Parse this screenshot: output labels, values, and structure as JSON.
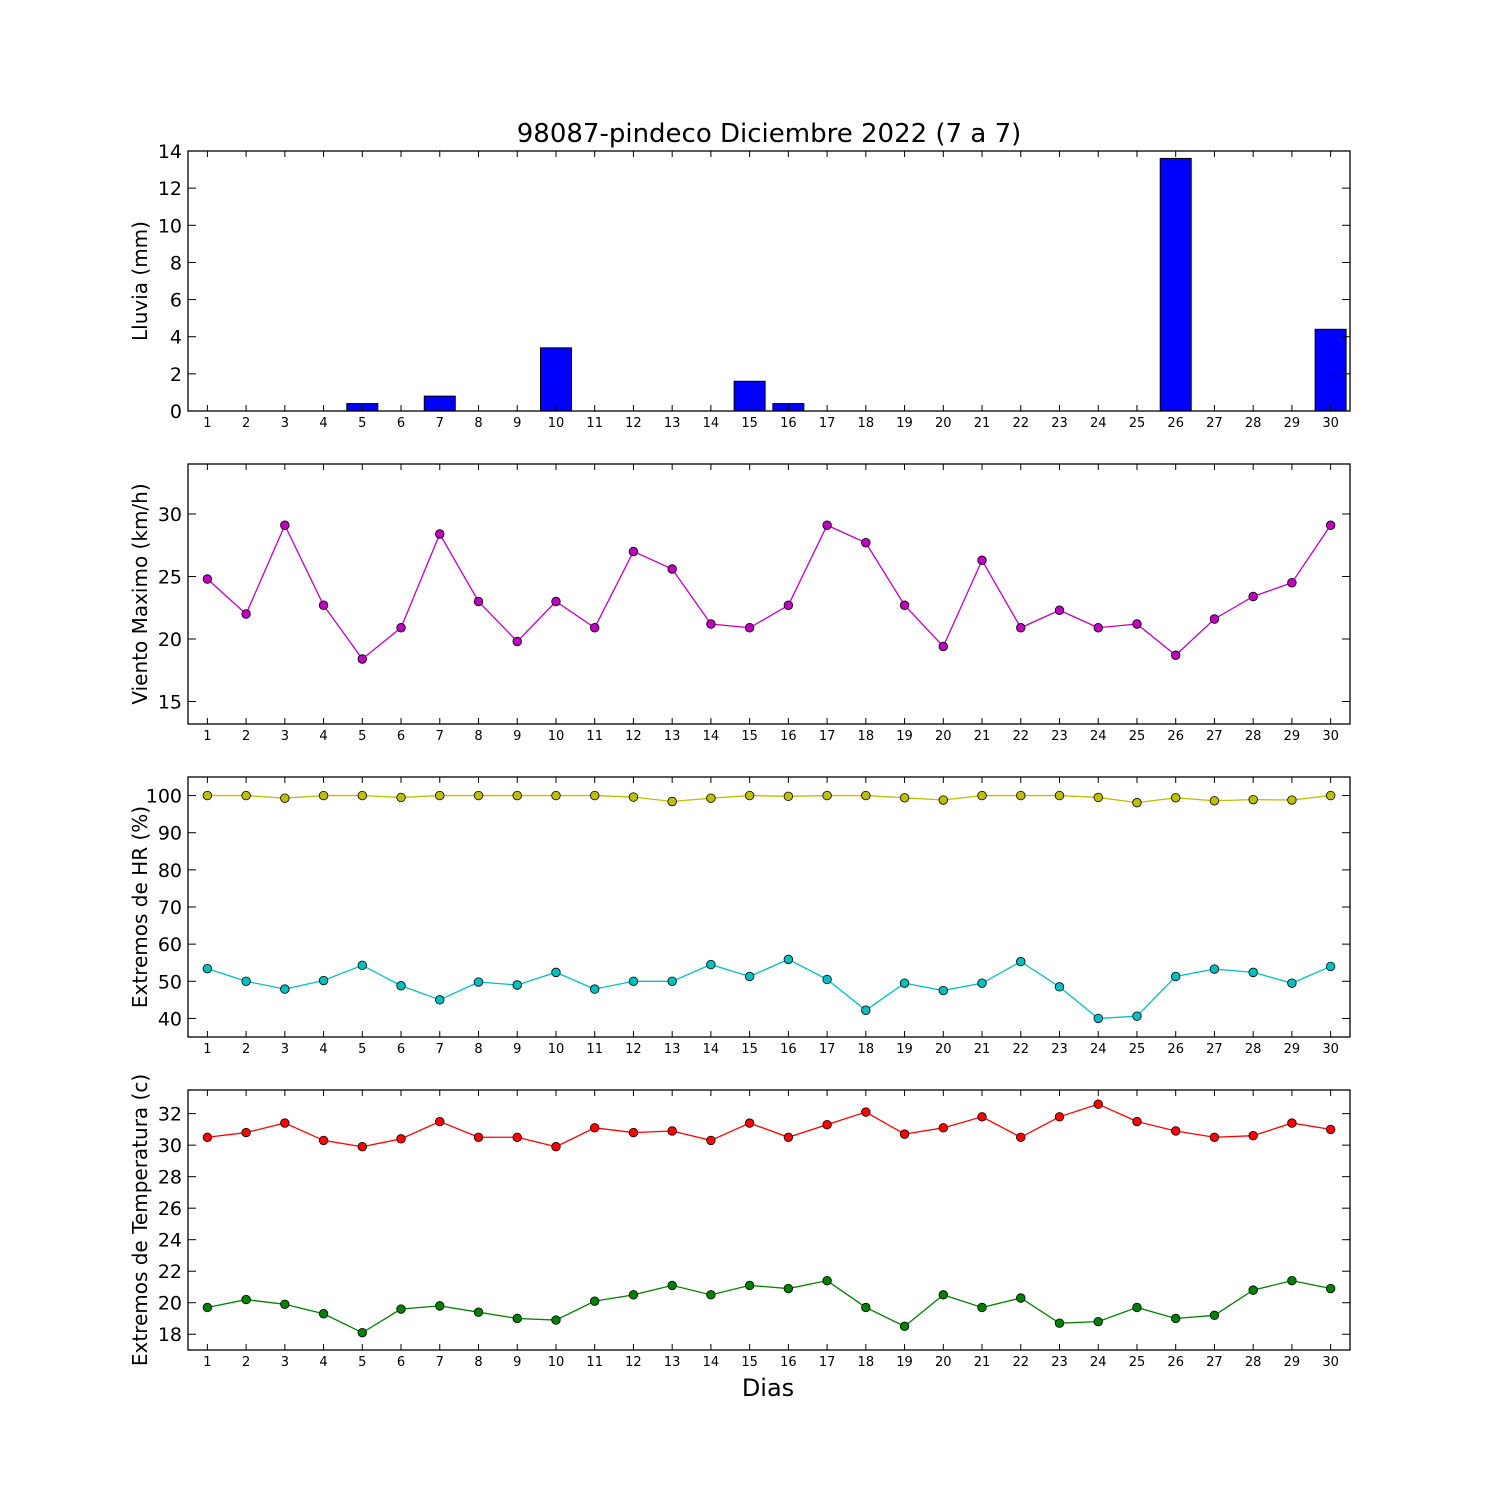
{
  "figure": {
    "title": "98087-pindeco Diciembre 2022  (7 a 7)",
    "xlabel": "Dias"
  },
  "chart_data": [
    {
      "type": "bar",
      "ylabel": "Lluvia (mm)",
      "ylim": [
        0,
        14
      ],
      "yticks": [
        0,
        2,
        4,
        6,
        8,
        10,
        12,
        14
      ],
      "x": [
        1,
        2,
        3,
        4,
        5,
        6,
        7,
        8,
        9,
        10,
        11,
        12,
        13,
        14,
        15,
        16,
        17,
        18,
        19,
        20,
        21,
        22,
        23,
        24,
        25,
        26,
        27,
        28,
        29,
        30
      ],
      "series": [
        {
          "color": "#0000ff",
          "values": [
            0,
            0,
            0,
            0,
            0.4,
            0,
            0.8,
            0,
            0,
            3.4,
            0,
            0,
            0,
            0,
            1.6,
            0.4,
            0,
            0,
            0,
            0,
            0,
            0,
            0,
            0,
            0,
            13.6,
            0,
            0,
            0,
            4.4
          ]
        }
      ]
    },
    {
      "type": "line",
      "ylabel": "Viento Maximo (km/h)",
      "ylim": [
        13.2,
        34
      ],
      "yticks": [
        15,
        20,
        25,
        30
      ],
      "x": [
        1,
        2,
        3,
        4,
        5,
        6,
        7,
        8,
        9,
        10,
        11,
        12,
        13,
        14,
        15,
        16,
        17,
        18,
        19,
        20,
        21,
        22,
        23,
        24,
        25,
        26,
        27,
        28,
        29,
        30
      ],
      "series": [
        {
          "color": "#bf00bf",
          "values": [
            24.8,
            22,
            29.1,
            22.7,
            18.4,
            20.9,
            28.4,
            23,
            19.8,
            23,
            20.9,
            27,
            25.6,
            21.2,
            20.9,
            22.7,
            29.1,
            27.7,
            22.7,
            19.4,
            26.3,
            20.9,
            22.3,
            20.9,
            21.2,
            18.7,
            21.6,
            23.4,
            24.5,
            29.1
          ]
        }
      ]
    },
    {
      "type": "line",
      "ylabel": "Extremos de HR (%)",
      "ylim": [
        35,
        105
      ],
      "yticks": [
        40,
        50,
        60,
        70,
        80,
        90,
        100
      ],
      "x": [
        1,
        2,
        3,
        4,
        5,
        6,
        7,
        8,
        9,
        10,
        11,
        12,
        13,
        14,
        15,
        16,
        17,
        18,
        19,
        20,
        21,
        22,
        23,
        24,
        25,
        26,
        27,
        28,
        29,
        30
      ],
      "series": [
        {
          "color": "#bfbf00",
          "values": [
            100,
            100,
            99.3,
            100,
            100,
            99.5,
            100,
            100,
            100,
            100,
            100,
            99.6,
            98.4,
            99.3,
            100,
            99.8,
            100,
            100,
            99.4,
            98.8,
            100,
            100,
            100,
            99.5,
            98.1,
            99.4,
            98.6,
            98.9,
            98.8,
            100
          ]
        },
        {
          "color": "#00bfbf",
          "values": [
            53.4,
            50,
            47.9,
            50.2,
            54.3,
            48.8,
            45,
            49.8,
            49,
            52.4,
            47.9,
            50,
            50,
            54.5,
            51.3,
            55.9,
            50.5,
            42.2,
            49.5,
            47.5,
            49.5,
            55.3,
            48.5,
            40,
            40.6,
            51.3,
            53.3,
            52.4,
            49.5,
            54
          ]
        }
      ]
    },
    {
      "type": "line",
      "ylabel": "Extremos de Temperatura (c)",
      "ylim": [
        17,
        33.5
      ],
      "yticks": [
        18,
        20,
        22,
        24,
        26,
        28,
        30,
        32
      ],
      "x": [
        1,
        2,
        3,
        4,
        5,
        6,
        7,
        8,
        9,
        10,
        11,
        12,
        13,
        14,
        15,
        16,
        17,
        18,
        19,
        20,
        21,
        22,
        23,
        24,
        25,
        26,
        27,
        28,
        29,
        30
      ],
      "series": [
        {
          "color": "#ff0000",
          "values": [
            30.5,
            30.8,
            31.4,
            30.3,
            29.9,
            30.4,
            31.5,
            30.5,
            30.5,
            29.9,
            31.1,
            30.8,
            30.9,
            30.3,
            31.4,
            30.5,
            31.3,
            32.1,
            30.7,
            31.1,
            31.8,
            30.5,
            31.8,
            32.6,
            31.5,
            30.9,
            30.5,
            30.6,
            31.4,
            31
          ]
        },
        {
          "color": "#008000",
          "values": [
            19.7,
            20.2,
            19.9,
            19.3,
            18.1,
            19.6,
            19.8,
            19.4,
            19,
            18.9,
            20.1,
            20.5,
            21.1,
            20.5,
            21.1,
            20.9,
            21.4,
            19.7,
            18.5,
            20.5,
            19.7,
            20.3,
            18.7,
            18.8,
            19.7,
            19,
            19.2,
            20.8,
            21.4,
            20.9
          ]
        }
      ]
    }
  ]
}
